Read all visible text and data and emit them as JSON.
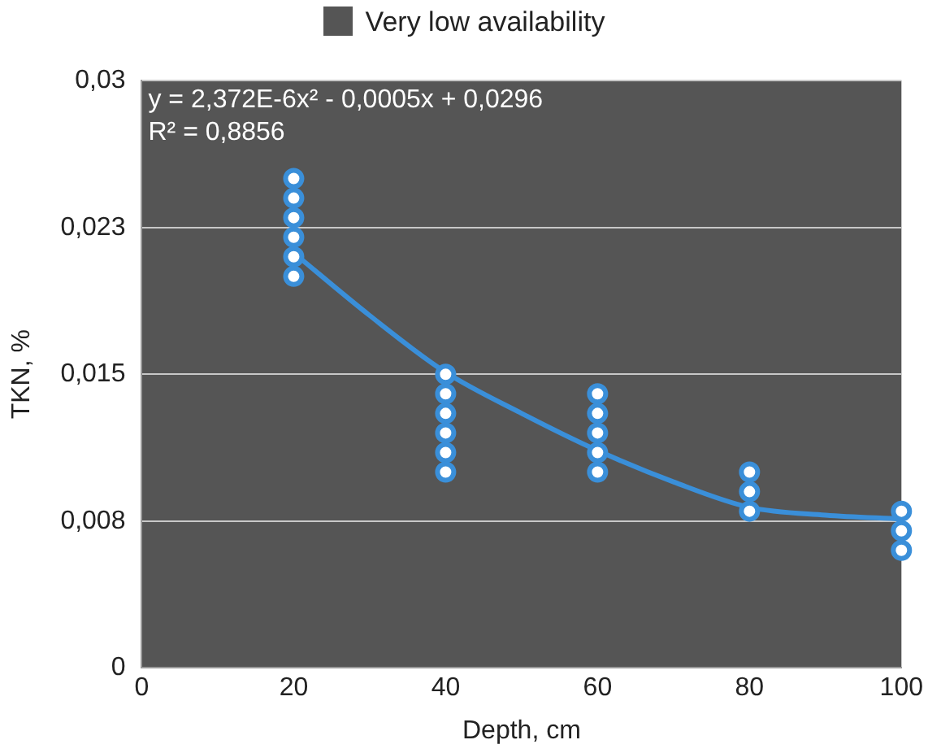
{
  "chart_data": {
    "type": "scatter",
    "xlabel": "Depth, cm",
    "ylabel": "TKN, %",
    "x": [
      20,
      20,
      20,
      20,
      20,
      20,
      40,
      40,
      40,
      40,
      40,
      40,
      60,
      60,
      60,
      60,
      60,
      80,
      80,
      80,
      100,
      100,
      100
    ],
    "series": [
      {
        "color": "#3a8fd9",
        "values": [
          0.025,
          0.024,
          0.023,
          0.022,
          0.021,
          0.02,
          0.015,
          0.014,
          0.013,
          0.012,
          0.011,
          0.01,
          0.014,
          0.013,
          0.012,
          0.011,
          0.01,
          0.01,
          0.009,
          0.008,
          0.008,
          0.007,
          0.006
        ]
      },
      {
        "type": "line",
        "marker": "none",
        "color": "#3a8fd9",
        "x": [
          20,
          30,
          40,
          50,
          60,
          70,
          80,
          90,
          100
        ],
        "values": [
          0.0212,
          0.018,
          0.0151,
          0.013,
          0.0111,
          0.0095,
          0.0082,
          0.0078,
          0.0076
        ]
      }
    ],
    "xlim": [
      0,
      100
    ],
    "xticks": [
      0,
      20,
      40,
      60,
      80,
      100
    ],
    "ylim": [
      0,
      0.03
    ],
    "yticks": [
      0,
      {
        "value": 0.0075,
        "label": "0,008"
      },
      {
        "value": 0.015,
        "label": "0,015"
      },
      {
        "value": 0.0225,
        "label": "0,023"
      },
      {
        "value": 0.03,
        "label": "0,03"
      }
    ],
    "bands": [
      {
        "axis": "y",
        "from": 0,
        "to": 0.03,
        "label": "Very low availability",
        "color": "#555555"
      }
    ],
    "annotations": [
      "y = 2,372E-6x² - 0,0005x + 0,0296",
      "R² = 0,8856"
    ],
    "grid": "y",
    "legend": "top",
    "marker": "circle"
  }
}
